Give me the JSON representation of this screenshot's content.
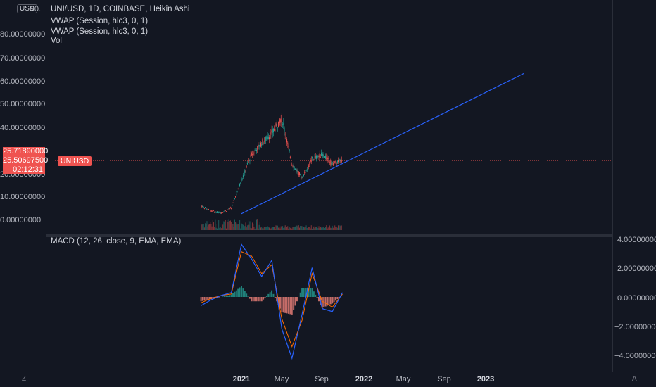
{
  "symbol_legend": "UNI/USD, 1D, COINBASE, Heikin Ashi",
  "indicators": [
    "VWAP (Session, hlc3, 0, 1)",
    "VWAP (Session, hlc3, 0, 1)",
    "Vol"
  ],
  "macd_legend": "MACD (12, 26, close, 9, EMA, EMA)",
  "currency_badge": "USD",
  "price_axis": {
    "top_partial": "90.",
    "ticks": [
      "80.00000000",
      "70.00000000",
      "60.00000000",
      "50.00000000",
      "40.00000000",
      "20.00000000",
      "10.00000000",
      "0.00000000"
    ]
  },
  "price_tags": {
    "high": "25.71890000",
    "current": "25.50697500",
    "countdown": "02:12:31",
    "symbol": "UNIUSD"
  },
  "macd_axis": [
    "4.00000000",
    "2.00000000",
    "0.00000000",
    "−2.00000000",
    "−4.00000000"
  ],
  "time_axis": [
    "2021",
    "May",
    "Sep",
    "2022",
    "May",
    "Sep",
    "2023"
  ],
  "bottom_bar": {
    "left": "Z",
    "right": "A"
  },
  "colors": {
    "background": "#131722",
    "up": "#26a69a",
    "down": "#ef5350",
    "trendline": "#2962ff",
    "macd_line": "#2962ff",
    "signal_line": "#ff6d00"
  },
  "chart_data": [
    {
      "type": "candlestick",
      "title": "UNI/USD, 1D, COINBASE, Heikin Ashi",
      "x": [
        "2020-09",
        "2020-10",
        "2020-11",
        "2020-12",
        "2021-01",
        "2021-02",
        "2021-03",
        "2021-04",
        "2021-05",
        "2021-06",
        "2021-07",
        "2021-08",
        "2021-09",
        "2021-10",
        "2021-11"
      ],
      "close": [
        6,
        3.5,
        3,
        5,
        17,
        28,
        33,
        37,
        44,
        24,
        18,
        26,
        28,
        24,
        25.5
      ],
      "trendline": {
        "from": [
          "2021-01",
          2.5
        ],
        "to": [
          "2023-05",
          63
        ]
      },
      "ylim": [
        0,
        90
      ]
    },
    {
      "type": "line",
      "title": "MACD (12, 26, close, 9, EMA, EMA)",
      "x": [
        "2020-09",
        "2020-10",
        "2020-11",
        "2020-12",
        "2021-01",
        "2021-02",
        "2021-03",
        "2021-04",
        "2021-05",
        "2021-06",
        "2021-07",
        "2021-08",
        "2021-09",
        "2021-10",
        "2021-11"
      ],
      "series": [
        {
          "name": "MACD",
          "values": [
            -0.6,
            -0.2,
            0.1,
            0.3,
            3.6,
            2.6,
            1.4,
            2.5,
            -2.2,
            -4.2,
            -1.2,
            2.0,
            -0.8,
            -1.0,
            0.3
          ]
        },
        {
          "name": "Signal",
          "values": [
            -0.4,
            -0.1,
            0.1,
            0.2,
            3.1,
            2.8,
            1.6,
            2.2,
            -1.5,
            -3.4,
            -1.6,
            1.6,
            -0.3,
            -0.7,
            0.2
          ]
        }
      ],
      "ylim": [
        -5,
        4.5
      ]
    }
  ]
}
